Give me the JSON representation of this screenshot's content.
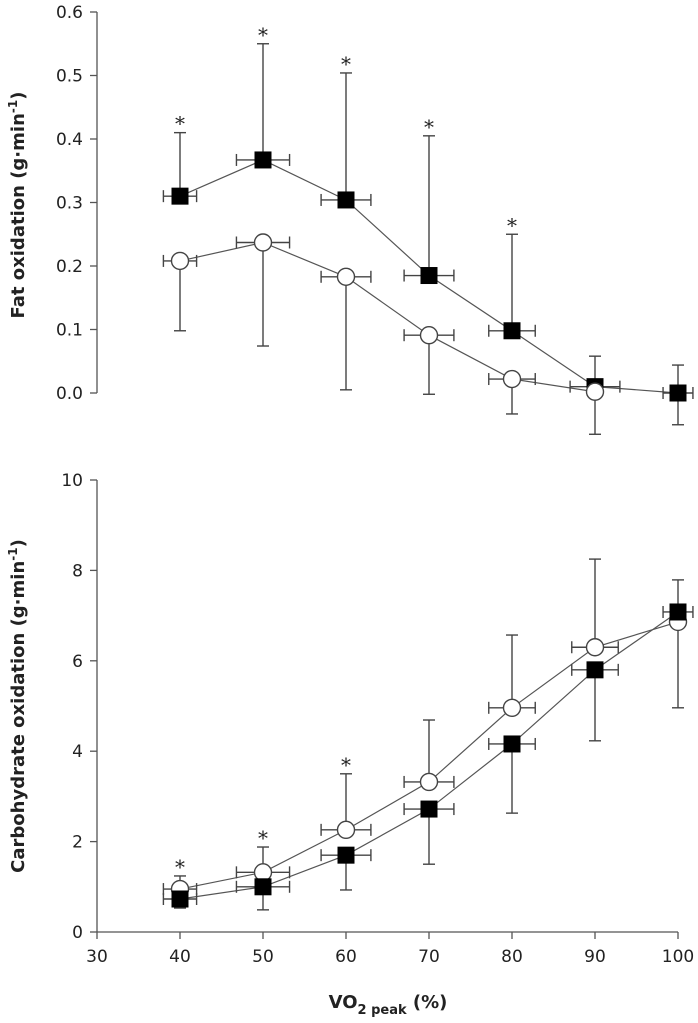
{
  "chart_data": [
    {
      "id": "fat",
      "type": "line",
      "title": "",
      "xlabel": "",
      "ylabel": "Fat oxidation (g·min⁻¹)",
      "ylabel_main": "Fat oxidation (g·min",
      "ylabel_sup": "-1",
      "ylabel_end": ")",
      "ylim": [
        0.0,
        0.6
      ],
      "yticks": [
        0.0,
        0.1,
        0.2,
        0.3,
        0.4,
        0.5,
        0.6
      ],
      "ytick_labels": [
        "0.0",
        "0.1",
        "0.2",
        "0.3",
        "0.4",
        "0.5",
        "0.6"
      ],
      "xlim": [
        30,
        100
      ],
      "show_xaxis": false,
      "grid": false,
      "series": [
        {
          "name": "filled squares",
          "marker": "square-filled",
          "x": [
            40,
            50,
            60,
            70,
            80,
            90,
            100
          ],
          "y": [
            0.31,
            0.367,
            0.304,
            0.185,
            0.098,
            0.01,
            0.0
          ],
          "y_err_up": [
            0.1,
            0.183,
            0.2,
            0.22,
            0.152,
            0.048,
            0.044
          ],
          "y_err_down": [
            0.0,
            0.0,
            0.0,
            0.0,
            0.0,
            0.0,
            0.05
          ],
          "x_err": [
            2.0,
            3.2,
            3.0,
            3.0,
            2.8,
            3.0,
            1.8
          ],
          "significant": [
            true,
            true,
            true,
            true,
            true,
            false,
            false
          ]
        },
        {
          "name": "open circles",
          "marker": "circle-open",
          "x": [
            40,
            50,
            60,
            70,
            80,
            90
          ],
          "y": [
            0.208,
            0.237,
            0.183,
            0.091,
            0.022,
            0.002
          ],
          "y_err_up": [
            0.0,
            0.0,
            0.0,
            0.0,
            0.0,
            0.0
          ],
          "y_err_down": [
            0.11,
            0.163,
            0.178,
            0.093,
            0.055,
            0.067
          ],
          "x_err": [
            2.0,
            3.2,
            3.0,
            3.0,
            2.8,
            0.0
          ]
        }
      ]
    },
    {
      "id": "cho",
      "type": "line",
      "title": "",
      "xlabel": "VO2 peak (%)",
      "xlabel_main": "VO",
      "xlabel_sub": "2 peak",
      "xlabel_end": " (%)",
      "ylabel": "Carbohydrate oxidation (g·min⁻¹)",
      "ylabel_main": "Carbohydrate oxidation (g·min",
      "ylabel_sup": "-1",
      "ylabel_end": ")",
      "ylim": [
        0,
        10
      ],
      "yticks": [
        0,
        2,
        4,
        6,
        8,
        10
      ],
      "ytick_labels": [
        "0",
        "2",
        "4",
        "6",
        "8",
        "10"
      ],
      "xlim": [
        30,
        100
      ],
      "xticks": [
        30,
        40,
        50,
        60,
        70,
        80,
        90,
        100
      ],
      "xtick_labels": [
        "30",
        "40",
        "50",
        "60",
        "70",
        "80",
        "90",
        "100"
      ],
      "show_xaxis": true,
      "grid": false,
      "series": [
        {
          "name": "open circles",
          "marker": "circle-open",
          "x": [
            40,
            50,
            60,
            70,
            80,
            90,
            100
          ],
          "y": [
            0.95,
            1.32,
            2.26,
            3.32,
            4.96,
            6.3,
            6.86
          ],
          "y_err_up": [
            0.29,
            0.56,
            1.24,
            1.37,
            1.61,
            1.95,
            0.0
          ],
          "y_err_down": [
            0.0,
            0.0,
            0.0,
            0.0,
            0.0,
            0.0,
            1.9
          ],
          "x_err": [
            2.0,
            3.2,
            3.0,
            3.0,
            2.8,
            2.8,
            0.0
          ],
          "significant": [
            true,
            true,
            true,
            false,
            false,
            false,
            false
          ]
        },
        {
          "name": "filled squares",
          "marker": "square-filled",
          "x": [
            40,
            50,
            60,
            70,
            80,
            90,
            100
          ],
          "y": [
            0.73,
            1.0,
            1.7,
            2.72,
            4.16,
            5.8,
            7.08
          ],
          "y_err_up": [
            0.0,
            0.0,
            0.0,
            0.0,
            0.0,
            0.0,
            0.71
          ],
          "y_err_down": [
            0.2,
            0.51,
            0.77,
            1.22,
            1.53,
            1.57,
            0.0
          ],
          "x_err": [
            2.0,
            3.2,
            3.0,
            3.0,
            2.8,
            2.8,
            1.8
          ]
        }
      ]
    }
  ],
  "significance_marker": "*"
}
